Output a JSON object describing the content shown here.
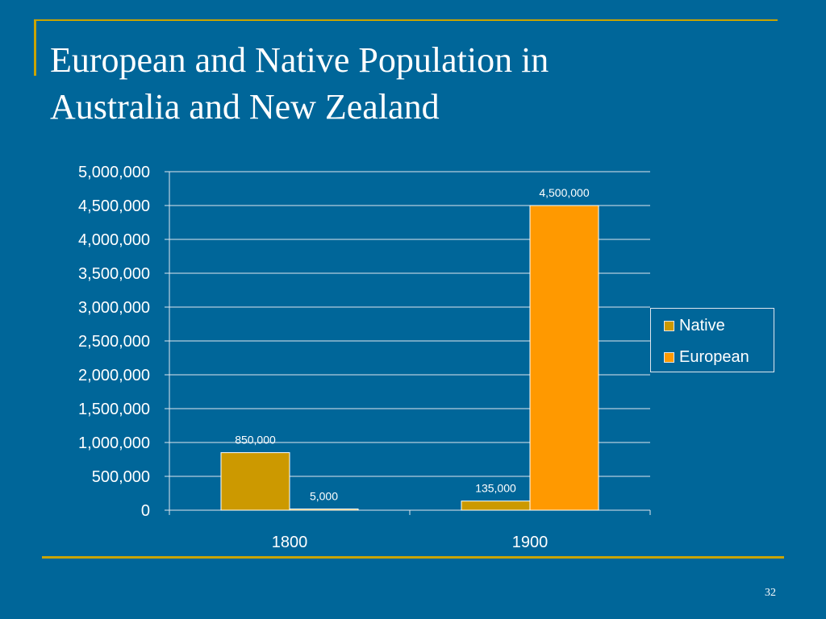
{
  "slide": {
    "title_line1": "European and Native Population in",
    "title_line2": "Australia and New Zealand",
    "page_number": "32"
  },
  "colors": {
    "background": "#006699",
    "accent_rule": "#c8a400",
    "native": "#cc9900",
    "european": "#ff9900",
    "gridline": "#dfe6ee"
  },
  "chart_data": {
    "type": "bar",
    "categories": [
      "1800",
      "1900"
    ],
    "series": [
      {
        "name": "Native",
        "values": [
          850000,
          135000
        ],
        "labels": [
          "850,000",
          "135,000"
        ]
      },
      {
        "name": "European",
        "values": [
          5000,
          4500000
        ],
        "labels": [
          "5,000",
          "4,500,000"
        ]
      }
    ],
    "y_ticks": [
      "0",
      "500,000",
      "1,000,000",
      "1,500,000",
      "2,000,000",
      "2,500,000",
      "3,000,000",
      "3,500,000",
      "4,000,000",
      "4,500,000",
      "5,000,000"
    ],
    "ylim": [
      0,
      5000000
    ],
    "grid": true,
    "legend_position": "right"
  }
}
